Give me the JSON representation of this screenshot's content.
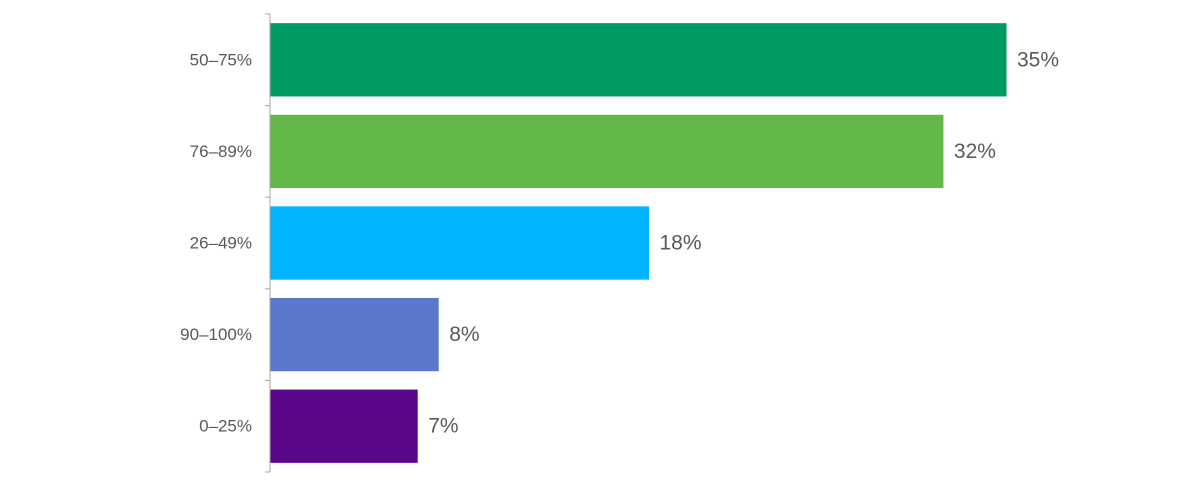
{
  "chart_data": {
    "type": "bar",
    "orientation": "horizontal",
    "categories": [
      "50–75%",
      "76–89%",
      "26–49%",
      "90–100%",
      "0–25%"
    ],
    "values": [
      35,
      32,
      18,
      8,
      7
    ],
    "value_labels": [
      "35%",
      "32%",
      "18%",
      "8%",
      "7%"
    ],
    "colors": [
      "#009a63",
      "#63b947",
      "#00b4ff",
      "#5b78cc",
      "#5a0789"
    ]
  }
}
